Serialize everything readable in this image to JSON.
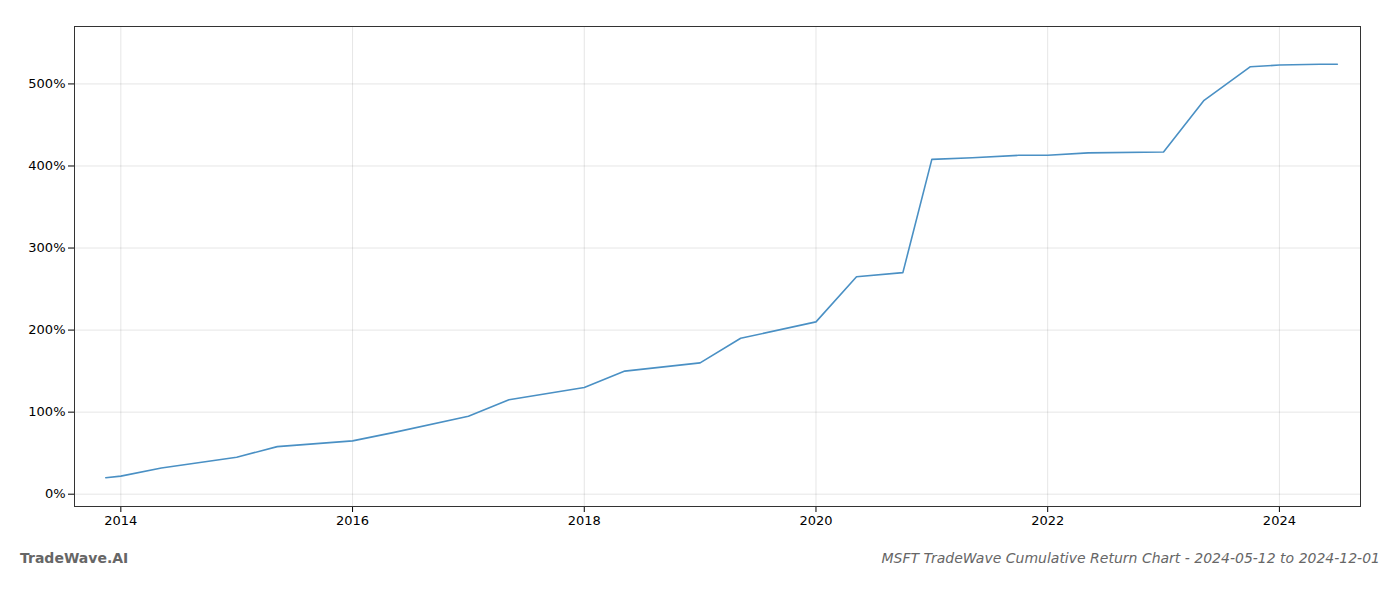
{
  "chart_data": {
    "type": "line",
    "title": "MSFT TradeWave Cumulative Return Chart - 2024-05-12 to 2024-12-01",
    "annotations": [
      "TradeWave.AI"
    ],
    "x": [
      2013.87,
      2014.0,
      2014.35,
      2015.0,
      2015.35,
      2016.0,
      2016.35,
      2017.0,
      2017.35,
      2018.0,
      2018.35,
      2019.0,
      2019.35,
      2020.0,
      2020.35,
      2020.75,
      2021.0,
      2021.35,
      2021.75,
      2022.0,
      2022.35,
      2023.0,
      2023.35,
      2023.75,
      2024.0,
      2024.35,
      2024.5
    ],
    "values": [
      20,
      22,
      32,
      45,
      58,
      65,
      75,
      95,
      115,
      130,
      150,
      160,
      190,
      210,
      265,
      270,
      408,
      410,
      413,
      413,
      416,
      417,
      480,
      521,
      523,
      524,
      524
    ],
    "color": "#4a90c4",
    "xlim": [
      2013.6,
      2024.7
    ],
    "ylim": [
      -15,
      570
    ],
    "xticks": [
      2014,
      2016,
      2018,
      2020,
      2022,
      2024
    ],
    "yticks": [
      {
        "value": 0,
        "label": "0%"
      },
      {
        "value": 100,
        "label": "100%"
      },
      {
        "value": 200,
        "label": "200%"
      },
      {
        "value": 300,
        "label": "300%"
      },
      {
        "value": 400,
        "label": "400%"
      },
      {
        "value": 500,
        "label": "500%"
      }
    ],
    "grid": true
  }
}
